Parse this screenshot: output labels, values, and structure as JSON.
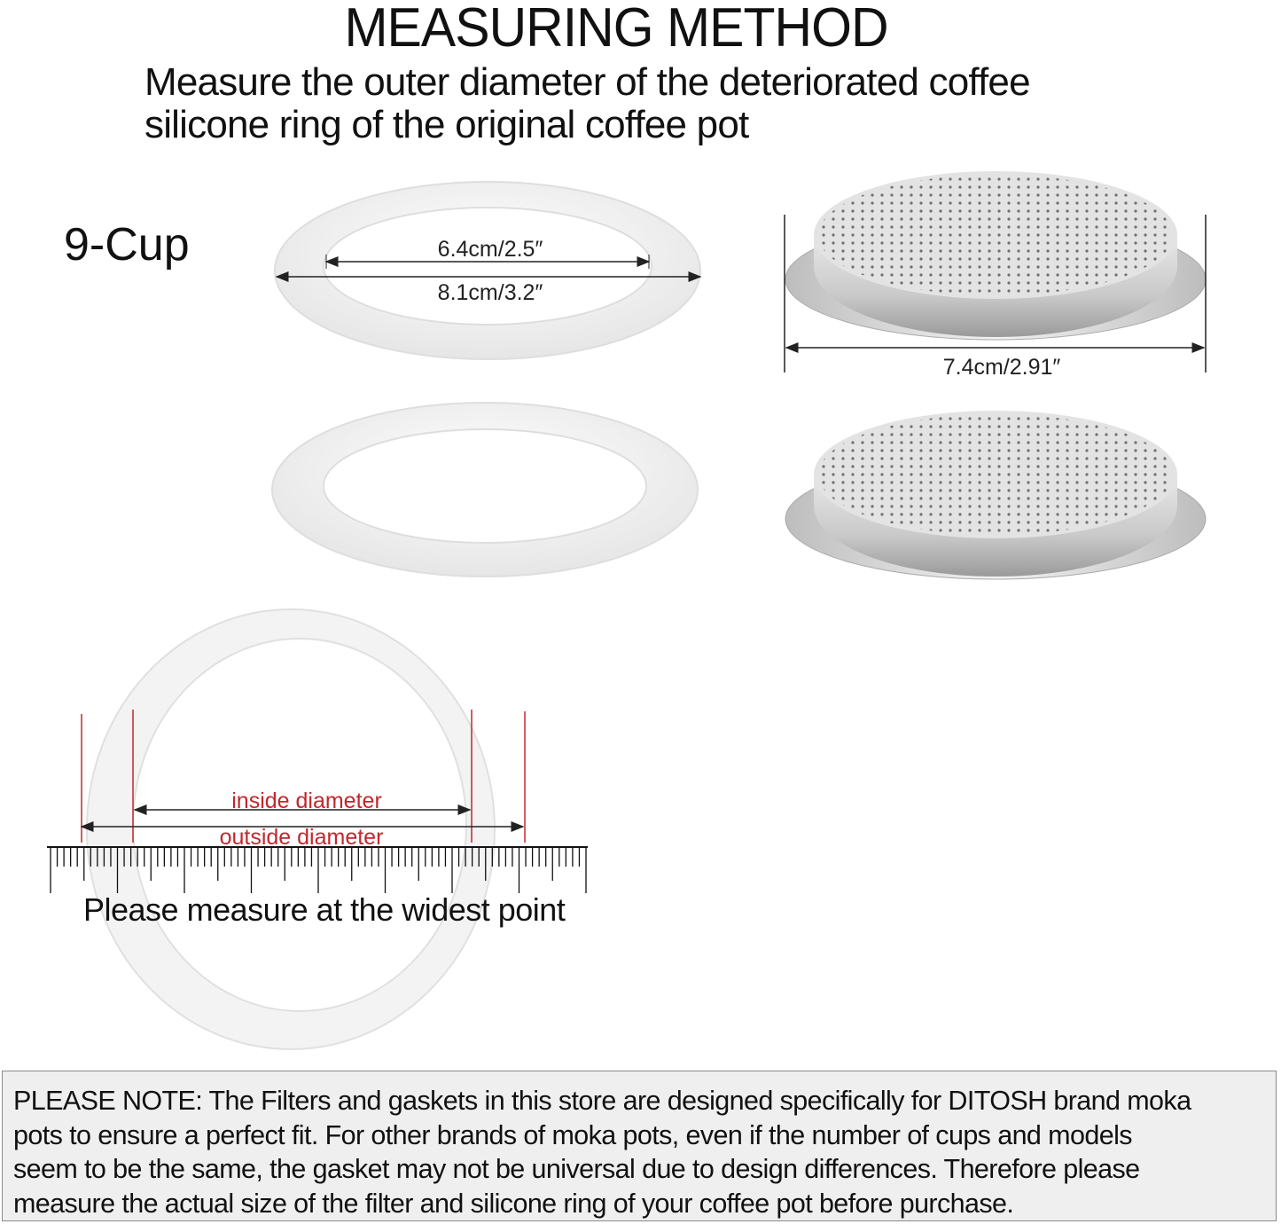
{
  "header": {
    "title": "MEASURING METHOD",
    "subtitle_line1": "Measure the outer diameter of the deteriorated coffee",
    "subtitle_line2": "silicone ring of the original coffee pot"
  },
  "product": {
    "size_label": "9-Cup",
    "gasket_inner": "6.4cm/2.5″",
    "gasket_outer": "8.1cm/3.2″",
    "filter_diameter": "7.4cm/2.91″"
  },
  "measure_guide": {
    "inside_label": "inside diameter",
    "outside_label": "outside diameter",
    "instruction": "Please measure at the widest point",
    "accent_color": "#c0282d"
  },
  "note": {
    "lines": [
      "PLEASE NOTE: The Filters and gaskets in this store are designed specifically for DITOSH brand moka",
      "pots to ensure a perfect fit. For other brands of moka pots, even if the number of cups and models",
      "seem to be the same, the gasket may not be universal due to design differences. Therefore please",
      "measure the actual size of the filter and silicone ring of your coffee pot before purchase."
    ]
  }
}
